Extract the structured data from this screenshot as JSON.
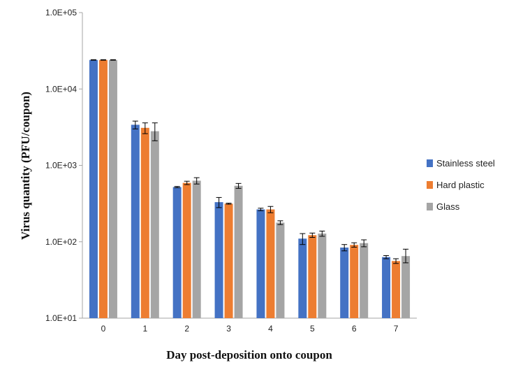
{
  "chart_data": {
    "type": "bar",
    "title": "",
    "xlabel": "Day post-deposition onto coupon",
    "ylabel": "Virus quantity (PFU/coupon)",
    "yscale": "log",
    "ylim": [
      10,
      100000
    ],
    "yticks": [
      {
        "value": 10,
        "label": "1.0E+01"
      },
      {
        "value": 100,
        "label": "1.0E+02"
      },
      {
        "value": 1000,
        "label": "1.0E+03"
      },
      {
        "value": 10000,
        "label": "1.0E+04"
      },
      {
        "value": 100000,
        "label": "1.0E+05"
      }
    ],
    "categories": [
      "0",
      "1",
      "2",
      "3",
      "4",
      "5",
      "6",
      "7"
    ],
    "grid": false,
    "legend_position": "right",
    "series": [
      {
        "name": "Stainless steel",
        "color": "#4472C4",
        "values": [
          24000,
          3400,
          520,
          330,
          265,
          110,
          84,
          63
        ],
        "error_low": [
          23800,
          3000,
          510,
          280,
          255,
          92,
          76,
          60
        ],
        "error_high": [
          24200,
          3800,
          530,
          380,
          275,
          128,
          92,
          66
        ]
      },
      {
        "name": "Hard plastic",
        "color": "#ED7D31",
        "values": [
          24000,
          3100,
          590,
          315,
          265,
          122,
          91,
          56
        ],
        "error_low": [
          23800,
          2600,
          560,
          310,
          240,
          114,
          85,
          52
        ],
        "error_high": [
          24200,
          3600,
          620,
          320,
          290,
          130,
          97,
          60
        ]
      },
      {
        "name": "Glass",
        "color": "#A5A5A5",
        "values": [
          24000,
          2800,
          630,
          540,
          178,
          128,
          96,
          65
        ],
        "error_low": [
          23800,
          2100,
          570,
          500,
          168,
          118,
          86,
          53
        ],
        "error_high": [
          24200,
          3600,
          690,
          580,
          188,
          138,
          106,
          80
        ]
      }
    ]
  }
}
